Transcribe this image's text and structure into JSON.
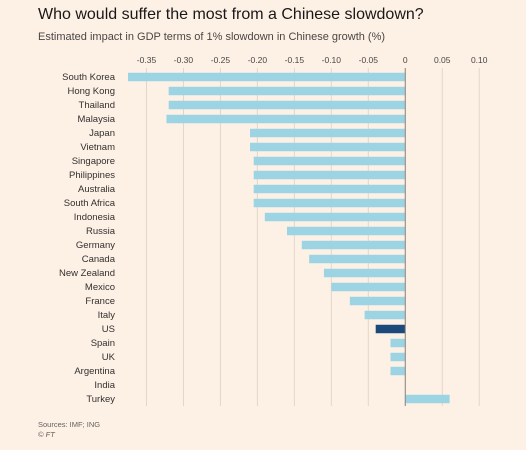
{
  "chart_data": {
    "type": "bar",
    "orientation": "horizontal",
    "title": "Who would suffer the most from a Chinese slowdown?",
    "subtitle": "Estimated impact in GDP terms of 1% slowdown in Chinese growth (%)",
    "categories": [
      "South Korea",
      "Hong Kong",
      "Thailand",
      "Malaysia",
      "Japan",
      "Vietnam",
      "Singapore",
      "Philippines",
      "Australia",
      "South Africa",
      "Indonesia",
      "Russia",
      "Germany",
      "Canada",
      "New Zealand",
      "Mexico",
      "France",
      "Italy",
      "US",
      "Spain",
      "UK",
      "Argentina",
      "India",
      "Turkey"
    ],
    "values": [
      -0.375,
      -0.32,
      -0.32,
      -0.323,
      -0.21,
      -0.21,
      -0.205,
      -0.205,
      -0.205,
      -0.205,
      -0.19,
      -0.16,
      -0.14,
      -0.13,
      -0.11,
      -0.1,
      -0.075,
      -0.055,
      -0.04,
      -0.02,
      -0.02,
      -0.02,
      0,
      0.06
    ],
    "highlight": "US",
    "xlim": [
      -0.375,
      0.12
    ],
    "xticks": [
      -0.35,
      -0.3,
      -0.25,
      -0.2,
      -0.15,
      -0.1,
      -0.05,
      0,
      0.05,
      0.1
    ],
    "xtick_labels": [
      "-0.35",
      "-0.30",
      "-0.25",
      "-0.20",
      "-0.15",
      "-0.10",
      "-0.05",
      "0",
      "0.05",
      "0.10"
    ],
    "xlabel": "",
    "ylabel": "",
    "grid": true,
    "colors": {
      "bar": "#9dd4e4",
      "highlight": "#1b4a7a",
      "grid": "#e3d6c9",
      "background": "#fdf1e6"
    }
  },
  "footer": {
    "source": "Sources: IMF; ING",
    "credit": "© FT"
  }
}
